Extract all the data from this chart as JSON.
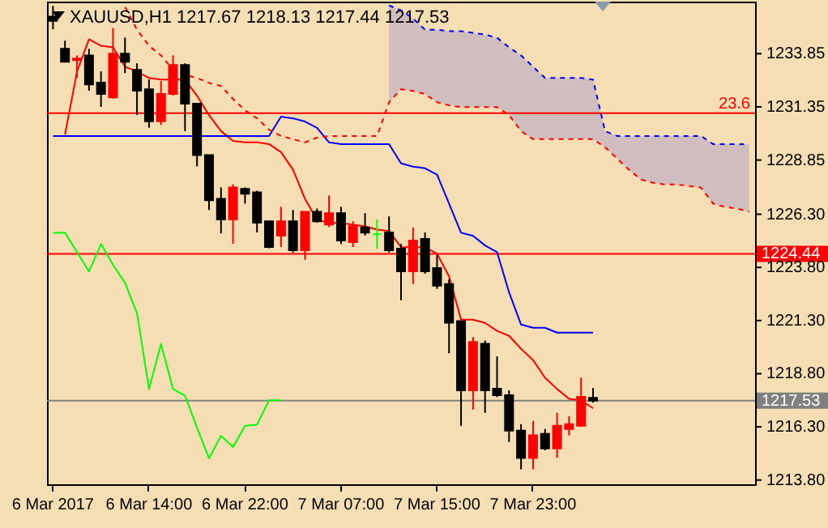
{
  "chart_data": {
    "type": "candlestick",
    "title": "XAUUSD,H1 1217.67 1218.13 1217.44 1217.53",
    "categories": [
      "6 Mar 2017",
      null,
      null,
      null,
      null,
      null,
      null,
      null,
      "6 Mar 14:00",
      null,
      null,
      null,
      null,
      null,
      null,
      null,
      "6 Mar 22:00",
      null,
      null,
      null,
      null,
      null,
      null,
      null,
      "7 Mar 07:00",
      null,
      null,
      null,
      null,
      null,
      null,
      null,
      "7 Mar 15:00",
      null,
      null,
      null,
      null,
      null,
      null,
      null,
      "7 Mar 23:00",
      null,
      null,
      null,
      null,
      null,
      null,
      null,
      null,
      null,
      null,
      null,
      null,
      null,
      null,
      null,
      null,
      null,
      null
    ],
    "ohlc": [
      [
        1235.6,
        1236.1,
        1235.0,
        1235.4
      ],
      [
        1234.08,
        1234.46,
        1233.47,
        1233.47
      ],
      [
        1233.55,
        1233.77,
        1232.71,
        1233.62
      ],
      [
        1233.77,
        1234.08,
        1232.11,
        1232.41
      ],
      [
        1232.49,
        1233.02,
        1231.35,
        1231.96
      ],
      [
        1231.8,
        1235.06,
        1231.73,
        1233.85
      ],
      [
        1233.85,
        1234.61,
        1232.94,
        1233.47
      ],
      [
        1233.09,
        1233.4,
        1230.97,
        1232.11
      ],
      [
        1232.18,
        1232.64,
        1230.37,
        1230.67
      ],
      [
        1230.67,
        1232.56,
        1230.5,
        1231.96
      ],
      [
        1231.96,
        1233.77,
        1231.88,
        1233.32
      ],
      [
        1233.32,
        1233.4,
        1230.21,
        1231.5
      ],
      [
        1231.5,
        1231.5,
        1228.55,
        1229.08
      ],
      [
        1229.08,
        1229.08,
        1226.5,
        1226.96
      ],
      [
        1227.03,
        1227.56,
        1225.4,
        1226.05
      ],
      [
        1226.05,
        1227.71,
        1224.91,
        1227.56
      ],
      [
        1227.49,
        1227.56,
        1226.8,
        1227.26
      ],
      [
        1227.33,
        1227.41,
        1225.44,
        1225.9
      ],
      [
        1225.97,
        1225.97,
        1224.7,
        1224.76
      ],
      [
        1225.29,
        1226.65,
        1224.76,
        1225.97
      ],
      [
        1225.97,
        1226.5,
        1224.5,
        1224.61
      ],
      [
        1224.61,
        1226.42,
        1224.16,
        1226.42
      ],
      [
        1226.42,
        1226.57,
        1225.9,
        1225.97
      ],
      [
        1225.82,
        1227.18,
        1225.7,
        1226.35
      ],
      [
        1226.35,
        1226.65,
        1224.9,
        1225.06
      ],
      [
        1224.99,
        1225.97,
        1224.76,
        1225.74
      ],
      [
        1225.67,
        1226.35,
        1225.3,
        1225.44
      ],
      [
        1225.36,
        1226.05,
        1224.68,
        1225.36
      ],
      [
        1225.44,
        1226.2,
        1224.5,
        1224.61
      ],
      [
        1224.68,
        1224.9,
        1222.26,
        1223.62
      ],
      [
        1223.62,
        1225.67,
        1223.02,
        1225.06
      ],
      [
        1225.14,
        1225.44,
        1223.5,
        1223.62
      ],
      [
        1223.77,
        1224.38,
        1222.79,
        1222.94
      ],
      [
        1223.02,
        1223.24,
        1219.76,
        1221.2
      ],
      [
        1221.27,
        1221.27,
        1216.35,
        1218.02
      ],
      [
        1218.02,
        1220.52,
        1217.11,
        1220.29
      ],
      [
        1220.21,
        1220.36,
        1216.96,
        1218.02
      ],
      [
        1218.09,
        1219.61,
        1217.7,
        1217.79
      ],
      [
        1217.79,
        1218.02,
        1215.59,
        1216.12
      ],
      [
        1216.12,
        1216.43,
        1214.3,
        1214.84
      ],
      [
        1214.84,
        1216.58,
        1214.3,
        1215.9
      ],
      [
        1215.97,
        1216.2,
        1215.2,
        1215.29
      ],
      [
        1215.29,
        1216.96,
        1214.84,
        1216.35
      ],
      [
        1216.2,
        1216.8,
        1215.9,
        1216.43
      ],
      [
        1216.35,
        1218.62,
        1216.3,
        1217.71
      ],
      [
        1217.67,
        1218.13,
        1217.44,
        1217.53
      ],
      null,
      null,
      null,
      null,
      null,
      null,
      null,
      null,
      null,
      null,
      null,
      null,
      null
    ],
    "colors": [
      "#000000",
      "#000000",
      "#ff0000",
      "#000000",
      "#000000",
      "#ff0000",
      "#000000",
      "#000000",
      "#000000",
      "#ff0000",
      "#ff0000",
      "#000000",
      "#000000",
      "#000000",
      "#000000",
      "#ff0000",
      "#000000",
      "#000000",
      "#000000",
      "#ff0000",
      "#000000",
      "#ff0000",
      "#000000",
      "#ff0000",
      "#000000",
      "#ff0000",
      "#000000",
      "#00ff00",
      "#000000",
      "#000000",
      "#ff0000",
      "#000000",
      "#000000",
      "#000000",
      "#000000",
      "#ff0000",
      "#000000",
      "#000000",
      "#000000",
      "#000000",
      "#ff0000",
      "#000000",
      "#ff0000",
      "#ff0000",
      "#ff0000",
      "#000000",
      null,
      null,
      null,
      null,
      null,
      null,
      null,
      null,
      null,
      null,
      null,
      null,
      null
    ],
    "ylim": [
      1213.6,
      1236.3
    ],
    "yticks": [
      {
        "value": 1213.8,
        "label": "1213.80"
      },
      {
        "value": 1216.3,
        "label": "1216.30"
      },
      {
        "value": 1218.8,
        "label": "1218.80"
      },
      {
        "value": 1221.3,
        "label": "1221.30"
      },
      {
        "value": 1223.8,
        "label": "1223.80"
      },
      {
        "value": 1226.3,
        "label": "1226.30"
      },
      {
        "value": 1228.85,
        "label": "1228.85"
      },
      {
        "value": 1231.35,
        "label": "1231.35"
      },
      {
        "value": 1233.85,
        "label": "1233.85"
      }
    ],
    "series": [
      {
        "type": "line",
        "color": "#ff0000",
        "values": [
          null,
          1230.05,
          1233.01,
          1234.53,
          1234.22,
          1234.15,
          1233.24,
          1233.01,
          1232.71,
          1232.63,
          1232.63,
          1232.63,
          1231.87,
          1230.96,
          1230.21,
          1229.75,
          1229.68,
          1229.68,
          1229.6,
          1229.22,
          1228.39,
          1227.02,
          1226.04,
          1225.89,
          1225.89,
          1225.81,
          1225.73,
          1225.58,
          1225.51,
          1224.75,
          1224.75,
          1224.75,
          1224.44,
          1223.38,
          1221.34,
          1221.34,
          1221.19,
          1220.81,
          1220.58,
          1219.97,
          1219.44,
          1218.61,
          1218.08,
          1217.62,
          1217.55,
          1217.17,
          null,
          null,
          null,
          null,
          null,
          null,
          null,
          null,
          null,
          null,
          null,
          null,
          null
        ]
      },
      {
        "type": "line",
        "color": "#0000ff",
        "values": [
          1229.98,
          1229.98,
          1229.98,
          1229.98,
          1229.98,
          1229.98,
          1229.98,
          1229.98,
          1229.98,
          1229.98,
          1229.98,
          1229.98,
          1229.98,
          1229.98,
          1229.98,
          1229.98,
          1229.98,
          1229.98,
          1229.98,
          1230.89,
          1230.81,
          1230.66,
          1230.36,
          1229.68,
          1229.6,
          1229.6,
          1229.6,
          1229.6,
          1229.6,
          1228.69,
          1228.54,
          1228.46,
          1228.16,
          1226.8,
          1225.43,
          1225.28,
          1224.83,
          1224.52,
          1222.63,
          1221.11,
          1220.96,
          1220.96,
          1220.73,
          1220.73,
          1220.73,
          1220.73,
          null,
          null,
          null,
          null,
          null,
          null,
          null,
          null,
          null,
          null,
          null,
          null,
          null
        ]
      },
      {
        "type": "line",
        "color": "#00ff00",
        "values": [
          1225.43,
          1225.43,
          1224.52,
          1223.61,
          1224.9,
          1223.92,
          1223.08,
          1221.64,
          1218.08,
          1220.2,
          1218.08,
          1217.77,
          1216.26,
          1214.82,
          1215.88,
          1215.35,
          1216.34,
          1216.41,
          1217.55,
          1217.55,
          null,
          null,
          null,
          null,
          null,
          null,
          null,
          null,
          null,
          null,
          null,
          null,
          null,
          null,
          null,
          null,
          null,
          null,
          null,
          null,
          null,
          null,
          null,
          null,
          null,
          null,
          null,
          null,
          null,
          null,
          null,
          null,
          null,
          null,
          null,
          null,
          null,
          null,
          null
        ]
      },
      {
        "type": "line",
        "color": "#ff0000",
        "line_style": "dashed",
        "values": [
          null,
          null,
          null,
          null,
          null,
          null,
          1236.04,
          1234.98,
          1234.22,
          1233.77,
          1233.09,
          1232.86,
          1232.71,
          1232.48,
          1232.33,
          1231.72,
          1231.19,
          1230.81,
          1230.28,
          1229.98,
          1229.83,
          1229.68,
          1229.9,
          1229.98,
          1229.98,
          1229.98,
          1229.98,
          1229.98,
          1231.57,
          1232.18,
          1232.1,
          1231.95,
          1231.57,
          1231.42,
          1231.34,
          1231.34,
          1231.34,
          1231.34,
          1230.96,
          1230.21,
          1229.83,
          1229.83,
          1229.83,
          1229.83,
          1229.83,
          1229.83,
          1229.45,
          1228.92,
          1228.39,
          1227.93,
          1227.78,
          1227.7,
          1227.7,
          1227.63,
          1227.55,
          1226.8,
          1226.64,
          1226.57,
          1226.42
        ]
      },
      {
        "type": "line",
        "color": "#0000ff",
        "line_style": "dashed",
        "values": [
          null,
          null,
          null,
          null,
          null,
          null,
          null,
          null,
          null,
          null,
          null,
          null,
          null,
          null,
          null,
          null,
          null,
          null,
          null,
          null,
          null,
          null,
          null,
          null,
          null,
          null,
          null,
          null,
          1236.12,
          1235.89,
          1235.51,
          1234.98,
          1234.98,
          1234.91,
          1234.91,
          1234.83,
          1234.75,
          1234.6,
          1234.15,
          1233.77,
          1233.24,
          1232.71,
          1232.71,
          1232.71,
          1232.71,
          1232.63,
          1230.21,
          1229.98,
          1229.98,
          1229.98,
          1229.98,
          1229.98,
          1229.98,
          1229.98,
          1229.98,
          1229.6,
          1229.6,
          1229.6,
          1229.6
        ],
        "lower": [
          null,
          null,
          null,
          null,
          null,
          null,
          null,
          null,
          null,
          null,
          null,
          null,
          null,
          null,
          null,
          null,
          null,
          null,
          null,
          null,
          null,
          null,
          null,
          null,
          null,
          null,
          null,
          null,
          1231.57,
          1232.18,
          1232.1,
          1231.95,
          1231.57,
          1231.42,
          1231.34,
          1231.34,
          1231.34,
          1231.34,
          1230.96,
          1230.21,
          1229.83,
          1229.83,
          1229.83,
          1229.83,
          1229.83,
          1229.83,
          1229.45,
          1228.92,
          1228.39,
          1227.93,
          1227.78,
          1227.7,
          1227.7,
          1227.63,
          1227.55,
          1226.8,
          1226.64,
          1226.57,
          1226.42
        ],
        "upper": [
          null,
          null,
          null,
          null,
          null,
          null,
          null,
          null,
          null,
          null,
          null,
          null,
          null,
          null,
          null,
          null,
          null,
          null,
          null,
          null,
          null,
          null,
          null,
          null,
          null,
          null,
          null,
          null,
          1236.12,
          1235.89,
          1235.51,
          1234.98,
          1234.98,
          1234.91,
          1234.91,
          1234.83,
          1234.75,
          1234.6,
          1234.15,
          1233.77,
          1233.24,
          1232.71,
          1232.71,
          1232.71,
          1232.71,
          1232.63,
          1230.21,
          1229.98,
          1229.98,
          1229.98,
          1229.98,
          1229.98,
          1229.98,
          1229.98,
          1229.98,
          1229.6,
          1229.6,
          1229.6,
          1229.6
        ]
      }
    ],
    "ref_lines": [
      {
        "axis": "y",
        "value": 1231.05,
        "color": "#ff0000"
      },
      {
        "axis": "y",
        "value": 1224.44,
        "label": "1224.44",
        "color": "#ff0000"
      },
      {
        "axis": "y",
        "value": 1217.53,
        "label": "1217.53",
        "color": "#808080"
      }
    ],
    "annotations": [
      {
        "text": "23.6",
        "y": 1231.05
      }
    ],
    "grid": false
  }
}
